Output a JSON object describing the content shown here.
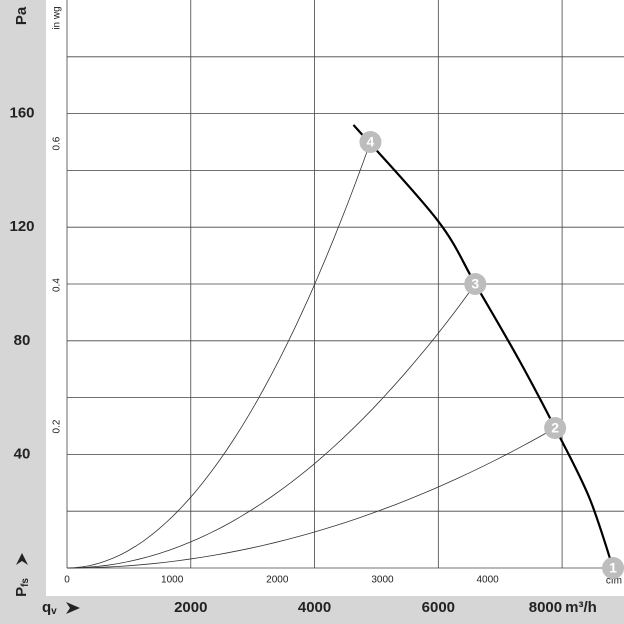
{
  "chart_data": {
    "type": "line",
    "y_label": "Pa",
    "y2_label": "in wg",
    "y_symbol": "P",
    "y_symbol_sub": "fs",
    "x_symbol": "q",
    "x_symbol_sub": "v",
    "x_unit": "m³/h",
    "x2_label": "cfm",
    "xlim": [
      0,
      9000
    ],
    "xticks": [
      2000,
      4000,
      6000,
      8000
    ],
    "ylim": [
      0,
      200
    ],
    "yticks": [
      40,
      80,
      120,
      160
    ],
    "ygrid": [
      20,
      40,
      60,
      80,
      100,
      120,
      140,
      160,
      180
    ],
    "x2lim": [
      0,
      5297
    ],
    "x2ticks": [
      0,
      1000,
      2000,
      3000,
      4000
    ],
    "y2lim": [
      0,
      0.803
    ],
    "y2ticks": [
      0.2,
      0.4,
      0.6
    ],
    "series": [
      {
        "name": "fan-curve",
        "color": "#000000",
        "x": [
          4629,
          5984,
          6597,
          7306,
          7887,
          8435,
          8823
        ],
        "values": [
          156,
          122.5,
          100,
          73.2,
          49.3,
          25,
          0
        ]
      }
    ],
    "points": [
      {
        "label": "1",
        "x": 8823,
        "y": 0
      },
      {
        "label": "2",
        "x": 7887,
        "y": 49.3
      },
      {
        "label": "3",
        "x": 6597,
        "y": 100
      },
      {
        "label": "4",
        "x": 4903,
        "y": 150
      }
    ]
  }
}
